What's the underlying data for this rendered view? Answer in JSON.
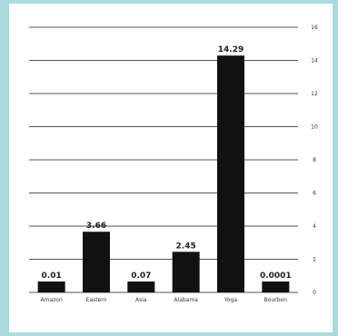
{
  "colors": {
    "background": "#a9dbdf",
    "panel": "#ffffff",
    "bar": "#111111",
    "grid": "#555555"
  },
  "chart_data": {
    "type": "bar",
    "title": "",
    "xlabel": "",
    "ylabel": "",
    "unit_label": "",
    "categories": [
      "Amazon",
      "Eastern",
      "Asia",
      "Alabama",
      "Yoga",
      "Bourbon"
    ],
    "values": [
      0.01,
      3.66,
      0.07,
      2.45,
      14.29,
      0.0001
    ],
    "value_labels": [
      "0.01",
      "3.66",
      "0.07",
      "2.45",
      "14.29",
      "0.0001"
    ],
    "yticks": [
      "0",
      "2",
      "4",
      "6",
      "8",
      "10",
      "12",
      "14",
      "16"
    ],
    "ylim": [
      0,
      16
    ],
    "grid": true,
    "footnote": ""
  }
}
